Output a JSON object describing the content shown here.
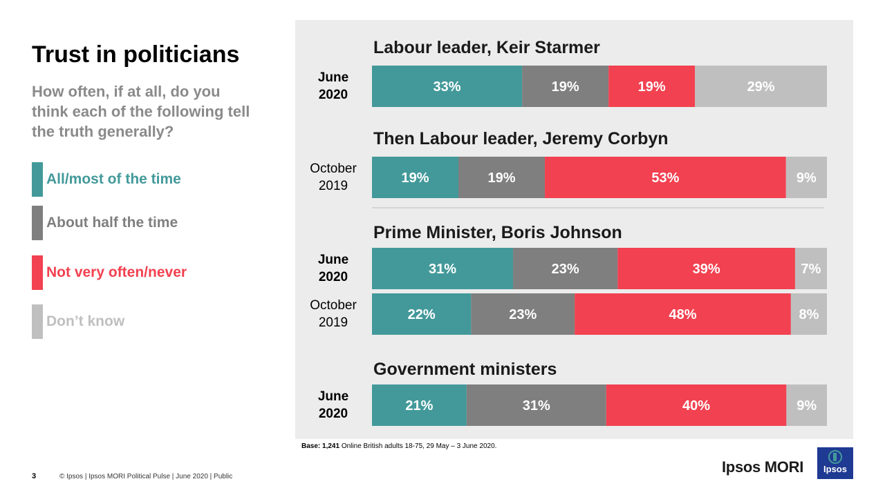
{
  "title": "Trust in politicians",
  "question": "How often, if at all, do you think each of the following tell the truth generally?",
  "legend": [
    {
      "label": "All/most of the time",
      "color": "#43999a"
    },
    {
      "label": "About half the time",
      "color": "#7f7f7f"
    },
    {
      "label": "Not very often/never",
      "color": "#f24150"
    },
    {
      "label": "Don’t know",
      "color": "#bfbfbf"
    }
  ],
  "chart_data": {
    "type": "bar",
    "orientation": "horizontal",
    "stacked": true,
    "unit": "%",
    "categories_order": [
      "All/most of the time",
      "About half the time",
      "Not very often/never",
      "Don’t know"
    ],
    "groups": [
      {
        "title": "Labour leader, Keir Starmer",
        "rows": [
          {
            "label_line1": "June",
            "label_line2": "2020",
            "bold": true,
            "values": [
              33,
              19,
              19,
              29
            ]
          }
        ]
      },
      {
        "title": "Then Labour leader, Jeremy Corbyn",
        "rows": [
          {
            "label_line1": "October",
            "label_line2": "2019",
            "bold": false,
            "values": [
              19,
              19,
              53,
              9
            ]
          }
        ]
      },
      {
        "title": "Prime Minister, Boris Johnson",
        "rows": [
          {
            "label_line1": "June",
            "label_line2": "2020",
            "bold": true,
            "values": [
              31,
              23,
              39,
              7
            ]
          },
          {
            "label_line1": "October",
            "label_line2": "2019",
            "bold": false,
            "values": [
              22,
              23,
              48,
              8
            ]
          }
        ]
      },
      {
        "title": "Government ministers",
        "rows": [
          {
            "label_line1": "June",
            "label_line2": "2020",
            "bold": true,
            "values": [
              21,
              31,
              40,
              9
            ]
          }
        ]
      }
    ]
  },
  "base_note": {
    "prefix": "Base:",
    "count": "1,241",
    "text": "Online British adults 18-75, 29 May – 3 June 2020."
  },
  "page_number": "3",
  "footer": "© Ipsos | Ipsos MORI Political Pulse | June 2020 | Public",
  "brand": "Ipsos MORI",
  "logo_text": "Ipsos"
}
